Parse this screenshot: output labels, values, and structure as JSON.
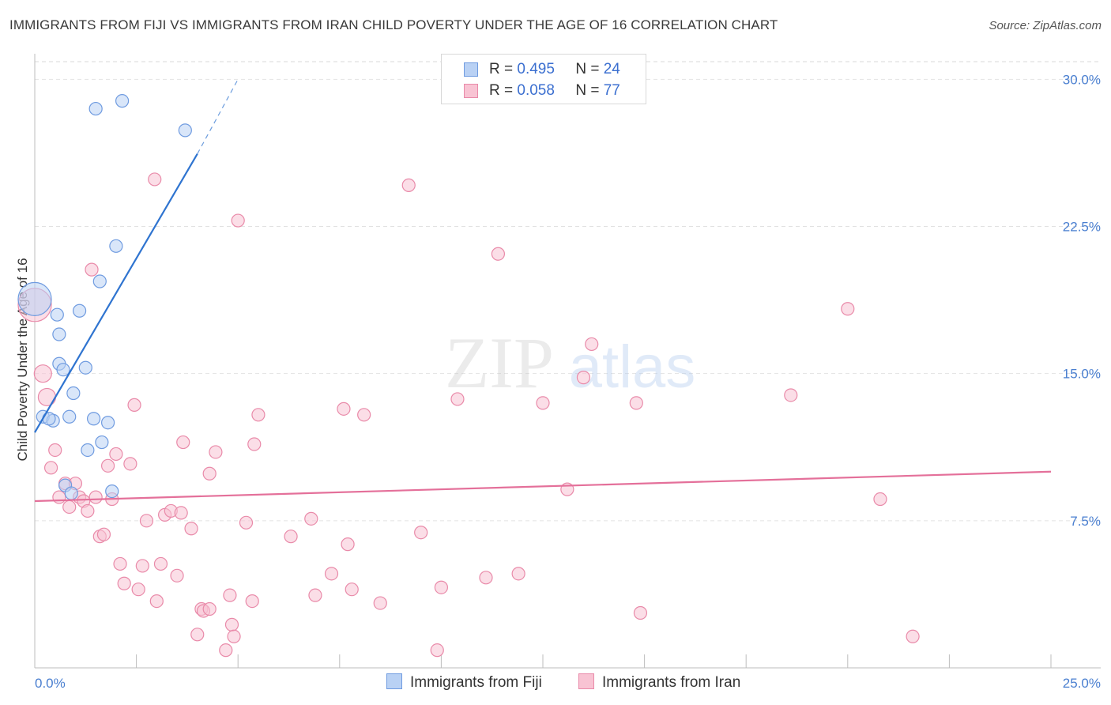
{
  "title": "IMMIGRANTS FROM FIJI VS IMMIGRANTS FROM IRAN CHILD POVERTY UNDER THE AGE OF 16 CORRELATION CHART",
  "source": "Source: ZipAtlas.com",
  "watermark": {
    "zip": "ZIP",
    "atlas": "atlas"
  },
  "legend": {
    "fiji": {
      "r_label": "R =",
      "r_value": "0.495",
      "n_label": "N =",
      "n_value": "24"
    },
    "iran": {
      "r_label": "R =",
      "r_value": "0.058",
      "n_label": "N =",
      "n_value": "77"
    }
  },
  "bottom_legend": {
    "fiji": "Immigrants from Fiji",
    "iran": "Immigrants from Iran"
  },
  "colors": {
    "fiji_fill": "#b9d1f4",
    "fiji_stroke": "#6f9be0",
    "fiji_line": "#2f74d0",
    "iran_fill": "#f8c3d3",
    "iran_stroke": "#e98aa9",
    "iran_line": "#e4709a",
    "tick": "#4a7fd0"
  },
  "chart_data": {
    "type": "scatter",
    "title": "IMMIGRANTS FROM FIJI VS IMMIGRANTS FROM IRAN CHILD POVERTY UNDER THE AGE OF 16 CORRELATION CHART",
    "xlabel": "",
    "ylabel": "Child Poverty Under the Age of 16",
    "xlim": [
      0,
      25
    ],
    "ylim": [
      0,
      30.9
    ],
    "x_tick_labels": [
      "0.0%",
      "25.0%"
    ],
    "y_ticks": [
      7.5,
      15.0,
      22.5,
      30.0
    ],
    "y_tick_labels": [
      "7.5%",
      "15.0%",
      "22.5%",
      "30.0%"
    ],
    "grid": true,
    "series": [
      {
        "name": "Immigrants from Fiji",
        "r": 0.495,
        "n": 24,
        "trend": {
          "x0": 0.0,
          "y0": 12.0,
          "x1": 4.0,
          "y1": 26.2,
          "dash_x1": 5.0,
          "dash_y1": 30.0
        },
        "points": [
          {
            "x": 0.0,
            "y": 18.8,
            "big": true
          },
          {
            "x": 0.2,
            "y": 12.8
          },
          {
            "x": 0.45,
            "y": 12.6
          },
          {
            "x": 0.55,
            "y": 18.0
          },
          {
            "x": 0.6,
            "y": 17.0
          },
          {
            "x": 0.6,
            "y": 15.5
          },
          {
            "x": 0.7,
            "y": 15.2
          },
          {
            "x": 0.75,
            "y": 9.3
          },
          {
            "x": 0.9,
            "y": 8.9
          },
          {
            "x": 0.95,
            "y": 14.0
          },
          {
            "x": 1.1,
            "y": 18.2
          },
          {
            "x": 1.25,
            "y": 15.3
          },
          {
            "x": 1.3,
            "y": 11.1
          },
          {
            "x": 1.45,
            "y": 12.7
          },
          {
            "x": 1.5,
            "y": 28.5
          },
          {
            "x": 1.6,
            "y": 19.7
          },
          {
            "x": 1.65,
            "y": 11.5
          },
          {
            "x": 1.8,
            "y": 12.5
          },
          {
            "x": 1.9,
            "y": 9.0
          },
          {
            "x": 2.0,
            "y": 21.5
          },
          {
            "x": 2.15,
            "y": 28.9
          },
          {
            "x": 3.7,
            "y": 27.4
          },
          {
            "x": 0.35,
            "y": 12.7
          },
          {
            "x": 0.85,
            "y": 12.8
          }
        ]
      },
      {
        "name": "Immigrants from Iran",
        "r": 0.058,
        "n": 77,
        "trend": {
          "x0": 0.0,
          "y0": 8.5,
          "x1": 25.0,
          "y1": 10.0
        },
        "points": [
          {
            "x": 0.0,
            "y": 18.5,
            "big": true
          },
          {
            "x": 0.2,
            "y": 15.0,
            "mid": true
          },
          {
            "x": 0.3,
            "y": 13.8,
            "mid": true
          },
          {
            "x": 0.4,
            "y": 10.2
          },
          {
            "x": 0.5,
            "y": 11.1
          },
          {
            "x": 0.6,
            "y": 8.7
          },
          {
            "x": 0.75,
            "y": 9.4
          },
          {
            "x": 0.85,
            "y": 8.2
          },
          {
            "x": 1.0,
            "y": 9.4
          },
          {
            "x": 1.1,
            "y": 8.7
          },
          {
            "x": 1.2,
            "y": 8.5
          },
          {
            "x": 1.3,
            "y": 8.0
          },
          {
            "x": 1.4,
            "y": 20.3
          },
          {
            "x": 1.5,
            "y": 8.7
          },
          {
            "x": 1.6,
            "y": 6.7
          },
          {
            "x": 1.7,
            "y": 6.8
          },
          {
            "x": 1.8,
            "y": 10.3
          },
          {
            "x": 1.9,
            "y": 8.6
          },
          {
            "x": 2.0,
            "y": 10.9
          },
          {
            "x": 2.1,
            "y": 5.3
          },
          {
            "x": 2.2,
            "y": 4.3
          },
          {
            "x": 2.35,
            "y": 10.4
          },
          {
            "x": 2.45,
            "y": 13.4
          },
          {
            "x": 2.55,
            "y": 4.0
          },
          {
            "x": 2.65,
            "y": 5.2
          },
          {
            "x": 2.75,
            "y": 7.5
          },
          {
            "x": 2.95,
            "y": 24.9
          },
          {
            "x": 3.0,
            "y": 3.4
          },
          {
            "x": 3.1,
            "y": 5.3
          },
          {
            "x": 3.2,
            "y": 7.8
          },
          {
            "x": 3.35,
            "y": 8.0
          },
          {
            "x": 3.5,
            "y": 4.7
          },
          {
            "x": 3.6,
            "y": 7.9
          },
          {
            "x": 3.65,
            "y": 11.5
          },
          {
            "x": 3.85,
            "y": 7.1
          },
          {
            "x": 4.0,
            "y": 1.7
          },
          {
            "x": 4.1,
            "y": 3.0
          },
          {
            "x": 4.15,
            "y": 2.9
          },
          {
            "x": 4.3,
            "y": 3.0
          },
          {
            "x": 4.3,
            "y": 9.9
          },
          {
            "x": 4.45,
            "y": 11.0
          },
          {
            "x": 4.7,
            "y": 0.9
          },
          {
            "x": 4.8,
            "y": 3.7
          },
          {
            "x": 4.85,
            "y": 2.2
          },
          {
            "x": 4.9,
            "y": 1.6
          },
          {
            "x": 5.0,
            "y": 22.8
          },
          {
            "x": 5.2,
            "y": 7.4
          },
          {
            "x": 5.35,
            "y": 3.4
          },
          {
            "x": 5.4,
            "y": 11.4
          },
          {
            "x": 5.5,
            "y": 12.9
          },
          {
            "x": 6.3,
            "y": 6.7
          },
          {
            "x": 6.8,
            "y": 7.6
          },
          {
            "x": 6.9,
            "y": 3.7
          },
          {
            "x": 7.3,
            "y": 4.8
          },
          {
            "x": 7.6,
            "y": 13.2
          },
          {
            "x": 7.7,
            "y": 6.3
          },
          {
            "x": 7.8,
            "y": 4.0
          },
          {
            "x": 8.1,
            "y": 12.9
          },
          {
            "x": 8.5,
            "y": 3.3
          },
          {
            "x": 9.2,
            "y": 24.6
          },
          {
            "x": 9.5,
            "y": 6.9
          },
          {
            "x": 9.9,
            "y": 0.9
          },
          {
            "x": 10.0,
            "y": 4.1
          },
          {
            "x": 10.4,
            "y": 13.7
          },
          {
            "x": 11.1,
            "y": 4.6
          },
          {
            "x": 11.4,
            "y": 21.1
          },
          {
            "x": 11.9,
            "y": 4.8
          },
          {
            "x": 12.5,
            "y": 13.5
          },
          {
            "x": 13.1,
            "y": 9.1
          },
          {
            "x": 13.5,
            "y": 14.8
          },
          {
            "x": 13.7,
            "y": 16.5
          },
          {
            "x": 14.9,
            "y": 2.8
          },
          {
            "x": 14.8,
            "y": 13.5
          },
          {
            "x": 18.6,
            "y": 13.9
          },
          {
            "x": 20.0,
            "y": 18.3
          },
          {
            "x": 20.8,
            "y": 8.6
          },
          {
            "x": 21.6,
            "y": 1.6
          }
        ]
      }
    ]
  }
}
